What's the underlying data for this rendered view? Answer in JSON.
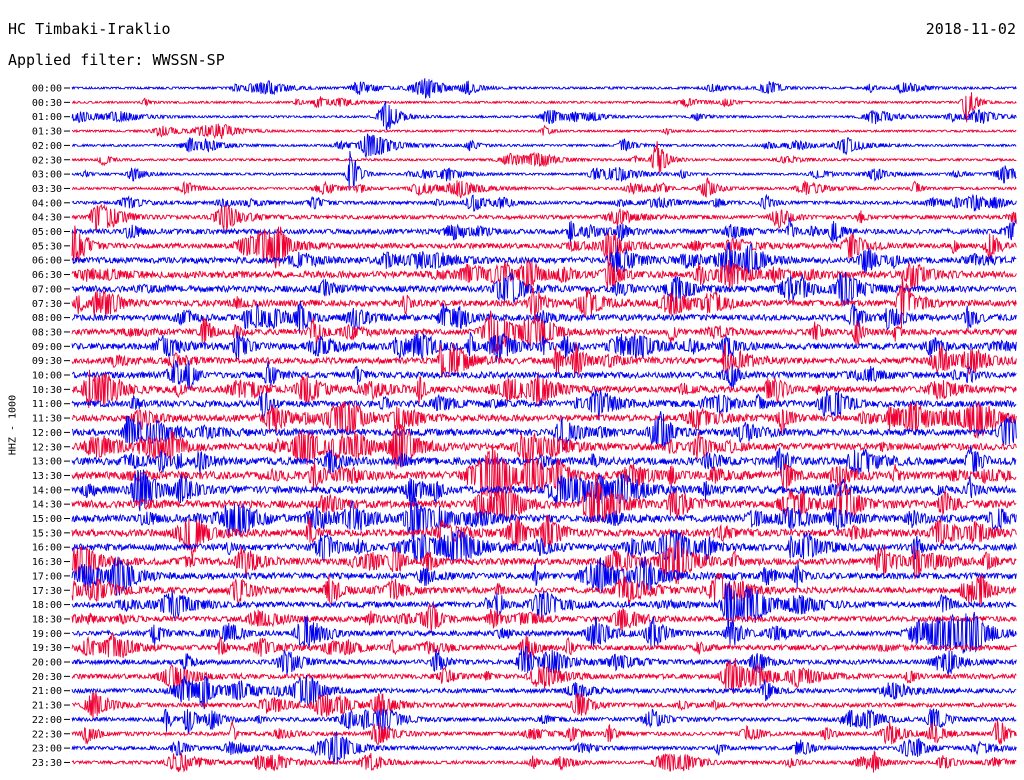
{
  "header": {
    "station": "HC Timbaki-Iraklio",
    "date": "2018-11-02",
    "filter": "Applied filter: WWSSN-SP"
  },
  "chart_data": {
    "type": "helicorder",
    "ylabel": "HHZ - 1000",
    "row_interval_minutes": 30,
    "row_labels": [
      "00:00",
      "00:30",
      "01:00",
      "01:30",
      "02:00",
      "02:30",
      "03:00",
      "03:30",
      "04:00",
      "04:30",
      "05:00",
      "05:30",
      "06:00",
      "06:30",
      "07:00",
      "07:30",
      "08:00",
      "08:30",
      "09:00",
      "09:30",
      "10:00",
      "10:30",
      "11:00",
      "11:30",
      "12:00",
      "12:30",
      "13:00",
      "13:30",
      "14:00",
      "14:30",
      "15:00",
      "15:30",
      "16:00",
      "16:30",
      "17:00",
      "17:30",
      "18:00",
      "18:30",
      "19:00",
      "19:30",
      "20:00",
      "20:30",
      "21:00",
      "21:30",
      "22:00",
      "22:30",
      "23:00",
      "23:30"
    ],
    "trace_colors": [
      "#0000ee",
      "#ee0033"
    ],
    "noise_level": [
      0.5,
      0.45,
      0.45,
      0.45,
      0.5,
      0.5,
      0.5,
      0.6,
      0.9,
      1.1,
      1.6,
      1.6,
      2.0,
      2.2,
      2.1,
      2.0,
      1.9,
      1.9,
      2.0,
      2.0,
      2.0,
      2.0,
      2.1,
      2.1,
      2.2,
      2.3,
      2.5,
      2.6,
      2.6,
      2.5,
      2.4,
      2.3,
      2.2,
      2.1,
      2.0,
      1.9,
      1.8,
      1.7,
      1.6,
      1.6,
      1.5,
      1.5,
      1.4,
      1.3,
      1.2,
      1.1,
      1.0,
      0.9
    ]
  }
}
